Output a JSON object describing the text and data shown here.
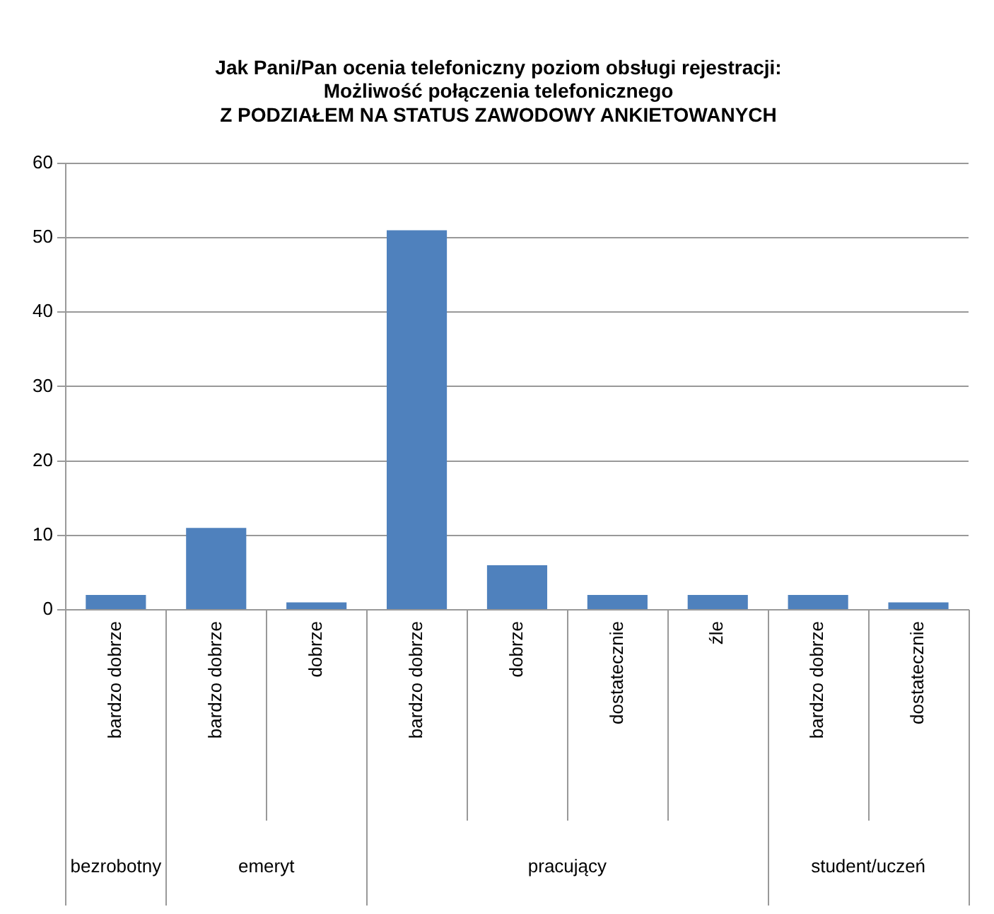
{
  "chart_data": {
    "type": "bar",
    "title": "Jak Pani/Pan ocenia telefoniczny poziom obsługi rejestracji:\nMożliwość połączenia telefonicznego\nZ PODZIAŁEM NA STATUS ZAWODOWY ANKIETOWANYCH",
    "categories": [
      "bardzo dobrze",
      "bardzo dobrze",
      "dobrze",
      "bardzo dobrze",
      "dobrze",
      "dostatecznie",
      "źle",
      "bardzo dobrze",
      "dostatecznie"
    ],
    "values": [
      2,
      11,
      1,
      51,
      6,
      2,
      2,
      2,
      1
    ],
    "color": "#4f81bd",
    "ylim": [
      0,
      60
    ],
    "yticks": [
      0,
      10,
      20,
      30,
      40,
      50,
      60
    ],
    "grid": "y",
    "legend": false,
    "annotations": [
      "bezrobotny",
      "emeryt",
      "pracujący",
      "student/uczeń"
    ]
  }
}
